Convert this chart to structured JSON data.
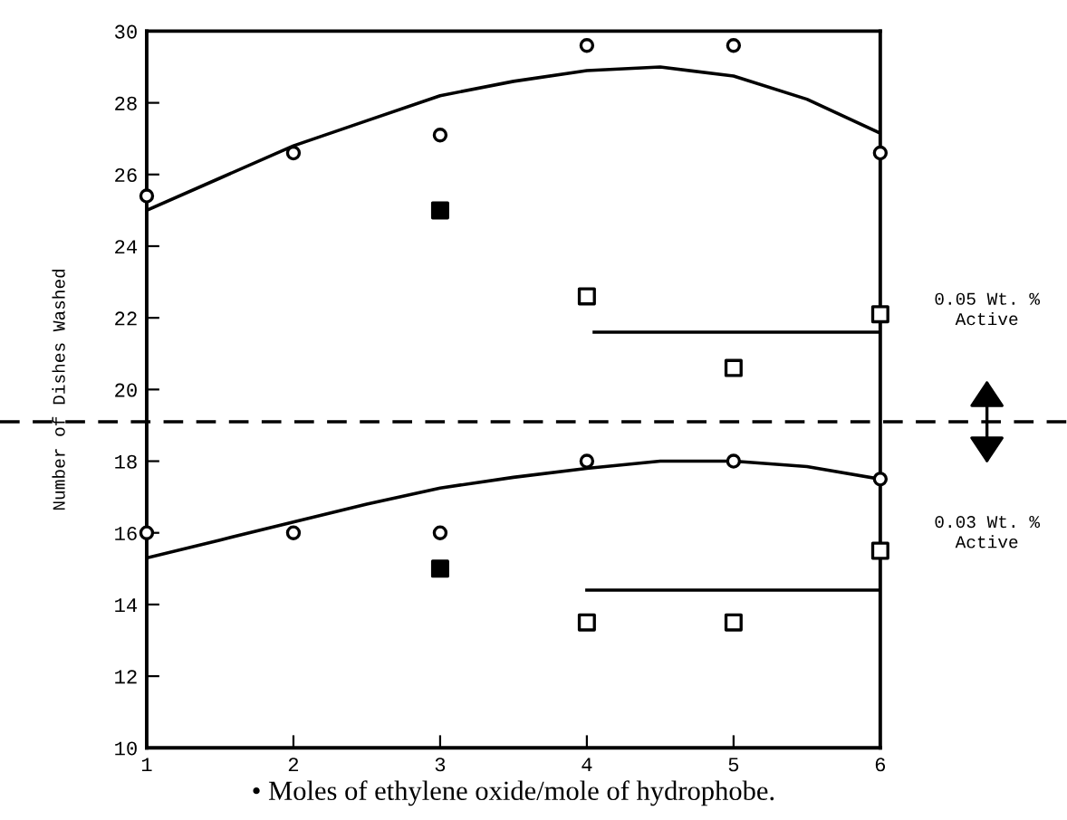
{
  "chart_data": {
    "type": "scatter",
    "ylabel": "Number of Dishes Washed",
    "xlabel": "• Moles of ethylene oxide/mole of hydrophobe.",
    "xlim": [
      1,
      6
    ],
    "xticks": [
      1,
      2,
      3,
      4,
      5,
      6
    ],
    "ylim": [
      10,
      30
    ],
    "yticks": [
      10,
      12,
      14,
      16,
      18,
      20,
      22,
      24,
      26,
      28,
      30
    ],
    "grid": false,
    "series": [
      {
        "marker": "circle",
        "color": "#ffffff",
        "x": [
          1,
          2,
          3,
          4,
          5,
          6
        ],
        "values": [
          25.4,
          26.6,
          27.1,
          29.6,
          29.6,
          26.6
        ]
      },
      {
        "marker": "square",
        "color": "#000000",
        "x": [
          3
        ],
        "values": [
          25.0
        ]
      },
      {
        "marker": "square",
        "color": "#ffffff",
        "x": [
          4,
          5,
          6
        ],
        "values": [
          22.6,
          20.6,
          22.1
        ]
      },
      {
        "type": "line",
        "color": "#000000",
        "line_style": "solid",
        "x": [
          1,
          1.5,
          2,
          2.5,
          3,
          3.5,
          4,
          4.5,
          5,
          5.5,
          6
        ],
        "values": [
          25.0,
          25.9,
          26.8,
          27.5,
          28.2,
          28.6,
          28.9,
          29.0,
          28.75,
          28.1,
          27.15
        ]
      },
      {
        "type": "line",
        "color": "#000000",
        "line_style": "solid",
        "x": [
          4.05,
          6
        ],
        "values": [
          21.6,
          21.6
        ]
      },
      {
        "marker": "circle",
        "color": "#ffffff",
        "x": [
          1,
          2,
          3,
          4,
          5,
          6
        ],
        "values": [
          16.0,
          16.0,
          16.0,
          18.0,
          18.0,
          17.5
        ]
      },
      {
        "marker": "square",
        "color": "#000000",
        "x": [
          3
        ],
        "values": [
          15.0
        ]
      },
      {
        "marker": "square",
        "color": "#ffffff",
        "x": [
          4,
          5,
          6
        ],
        "values": [
          13.5,
          13.5,
          15.5
        ]
      },
      {
        "type": "line",
        "color": "#000000",
        "line_style": "solid",
        "x": [
          1,
          1.5,
          2,
          2.5,
          3,
          3.5,
          4,
          4.5,
          5,
          5.5,
          6
        ],
        "values": [
          15.3,
          15.8,
          16.3,
          16.8,
          17.25,
          17.55,
          17.8,
          18.0,
          18.0,
          17.85,
          17.5
        ]
      },
      {
        "type": "line",
        "color": "#000000",
        "line_style": "solid",
        "x": [
          4.0,
          6
        ],
        "values": [
          14.4,
          14.4
        ]
      }
    ],
    "ref_lines": [
      {
        "axis": "y",
        "value": 19.1,
        "line_style": "dashed",
        "color": "#000000"
      }
    ],
    "annotations": [
      "0.05 Wt. %\nActive",
      "0.03 Wt. %\nActive"
    ]
  }
}
